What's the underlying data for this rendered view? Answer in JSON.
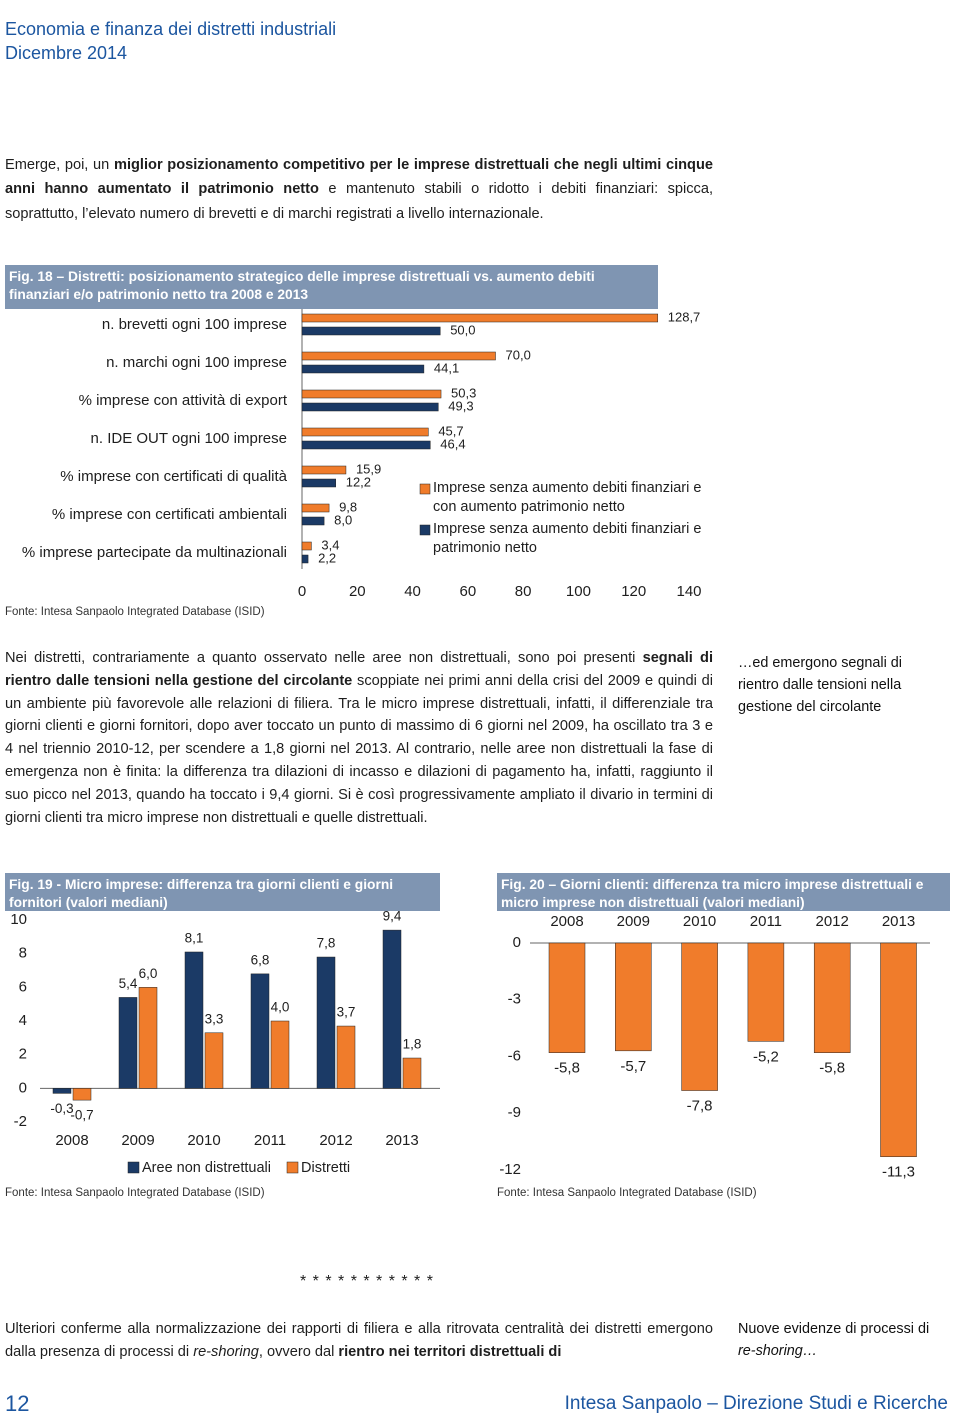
{
  "header": {
    "title": "Economia e finanza dei distretti industriali",
    "date": "Dicembre 2014"
  },
  "intro": {
    "runs": [
      {
        "text": "Emerge, poi, un "
      },
      {
        "text": "miglior posizionamento competitivo per le imprese distrettuali che negli ultimi cinque anni hanno aumentato il patrimonio netto",
        "bold": true
      },
      {
        "text": " e mantenuto stabili o ridotto i debiti finanziari: spicca, soprattutto, l’elevato numero di brevetti e di marchi registrati a livello internazionale."
      }
    ]
  },
  "body": {
    "runs": [
      {
        "text": "Nei distretti, contrariamente a quanto osservato nelle aree non distrettuali, sono poi presenti "
      },
      {
        "text": "segnali di rientro dalle tensioni nella gestione del circolante",
        "bold": true
      },
      {
        "text": " scoppiate nei primi anni della crisi del 2009 e quindi di un ambiente più favorevole alle relazioni di filiera. Tra le micro imprese distrettuali, infatti, il differenziale tra giorni clienti e giorni fornitori, dopo aver toccato un punto di massimo di 6 giorni nel 2009, ha oscillato tra 3 e 4 nel triennio 2010-12, per scendere a 1,8 giorni nel 2013. Al contrario, nelle aree non distrettuali la fase di emergenza non è finita: la differenza tra dilazioni di incasso e dilazioni di pagamento ha, infatti, raggiunto il suo picco nel 2013, quando ha toccato i 9,4 giorni. Si è così progressivamente ampliato il divario in termini di giorni clienti tra micro imprese non distrettuali e quelle distrettuali."
      }
    ]
  },
  "closing": {
    "runs": [
      {
        "text": "Ulteriori conferme alla normalizzazione dei rapporti di filiera e alla ritrovata centralità dei distretti emergono dalla presenza di processi di "
      },
      {
        "text": "re-shoring",
        "italic": true
      },
      {
        "text": ", ovvero dal "
      },
      {
        "text": "rientro nei territori distrettuali di",
        "bold": true
      }
    ]
  },
  "side_notes": [
    {
      "runs": [
        {
          "text": "…ed emergono segnali di rientro dalle tensioni nella gestione del circolante"
        }
      ]
    },
    {
      "runs": [
        {
          "text": "Nuove evidenze di processi di "
        },
        {
          "text": "re-shoring…",
          "italic": true
        }
      ]
    }
  ],
  "chart_data": [
    {
      "type": "hbar",
      "title": "Fig. 18 – Distretti: posizionamento strategico delle imprese distrettuali vs. aumento debiti finanziari e/o patrimonio netto tra 2008 e 2013",
      "categories": [
        "n. brevetti ogni 100 imprese",
        "n. marchi ogni 100 imprese",
        "% imprese con attività di export",
        "n. IDE OUT ogni 100 imprese",
        "% imprese con certificati di qualità",
        "% imprese con certificati ambientali",
        "% imprese partecipate da multinazionali"
      ],
      "series": [
        {
          "name": "Imprese senza aumento debiti finanziari e con aumento patrimonio netto",
          "color": "#f07c2b",
          "values": [
            128.7,
            70.0,
            50.3,
            45.7,
            15.9,
            9.8,
            3.4
          ],
          "value_labels": [
            "128,7",
            "70,0",
            "50,3",
            "45,7",
            "15,9",
            "9,8",
            "3,4"
          ]
        },
        {
          "name": "Imprese senza aumento debiti finanziari e patrimonio netto",
          "color": "#1b3a66",
          "values": [
            50.0,
            44.1,
            49.3,
            46.4,
            12.2,
            8.0,
            2.2
          ],
          "value_labels": [
            "50,0",
            "44,1",
            "49,3",
            "46,4",
            "12,2",
            "8,0",
            "2,2"
          ]
        }
      ],
      "xlim": [
        0,
        140
      ],
      "xticks": [
        0,
        20,
        40,
        60,
        80,
        100,
        120,
        140
      ],
      "source": "Fonte: Intesa Sanpaolo Integrated Database (ISID)"
    },
    {
      "type": "bar",
      "title": "Fig. 19 - Micro imprese: differenza tra giorni clienti e giorni fornitori (valori mediani)",
      "categories": [
        "2008",
        "2009",
        "2010",
        "2011",
        "2012",
        "2013"
      ],
      "series": [
        {
          "name": "Aree non distrettuali",
          "color": "#1b3a66",
          "values": [
            -0.3,
            5.4,
            8.1,
            6.8,
            7.8,
            9.4
          ],
          "value_labels": [
            "-0,3",
            "5,4",
            "8,1",
            "6,8",
            "7,8",
            "9,4"
          ]
        },
        {
          "name": "Distretti",
          "color": "#f07c2b",
          "values": [
            -0.7,
            6.0,
            3.3,
            4.0,
            3.7,
            1.8
          ],
          "value_labels": [
            "-0,7",
            "6,0",
            "3,3",
            "4,0",
            "3,7",
            "1,8"
          ]
        }
      ],
      "ylim": [
        -2,
        10
      ],
      "yticks": [
        -2,
        0,
        2,
        4,
        6,
        8,
        10
      ],
      "source": "Fonte: Intesa Sanpaolo Integrated Database (ISID)"
    },
    {
      "type": "bar",
      "title": "Fig. 20 – Giorni clienti: differenza tra micro imprese distrettuali e micro imprese non distrettuali (valori mediani)",
      "categories": [
        "2008",
        "2009",
        "2010",
        "2011",
        "2012",
        "2013"
      ],
      "values": [
        -5.8,
        -5.7,
        -7.8,
        -5.2,
        -5.8,
        -11.3
      ],
      "value_labels": [
        "-5,8",
        "-5,7",
        "-7,8",
        "-5,2",
        "-5,8",
        "-11,3"
      ],
      "color": "#f07c2b",
      "ylim": [
        -12,
        0
      ],
      "yticks": [
        -12,
        -9,
        -6,
        -3,
        0
      ],
      "xaxis_position": "top",
      "source": "Fonte: Intesa Sanpaolo Integrated Database (ISID)"
    }
  ],
  "separator": "* * * * * * * * * * *",
  "footer": {
    "page": 12,
    "publisher": "Intesa Sanpaolo – Direzione Studi e Ricerche"
  }
}
